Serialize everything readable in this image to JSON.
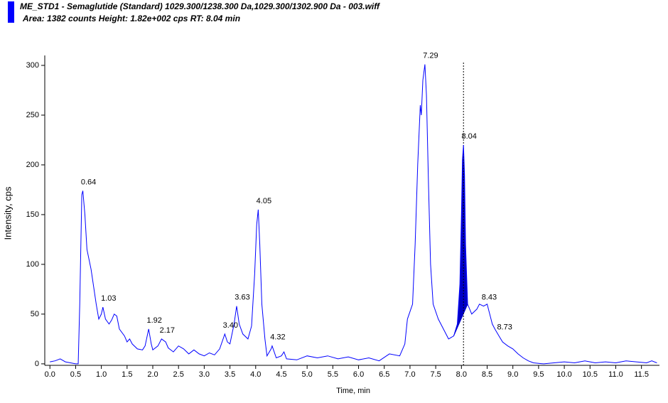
{
  "chart_data": {
    "type": "line",
    "title": "ME_STD1 - Semaglutide (Standard) 1029.300/1238.300 Da,1029.300/1302.900 Da - 003.wiff",
    "subtitle": "Area: 1382 counts  Height: 1.82e+002 cps  RT: 8.04 min",
    "x_label": "Time, min",
    "y_label": "Intensity, cps",
    "color": "#0000ff",
    "fill_color": "#0000c8",
    "xlim": [
      -0.1,
      11.85
    ],
    "ylim": [
      -1.5,
      310
    ],
    "xticks": [
      {
        "value": 0,
        "label": "0.0"
      },
      0.5,
      {
        "value": 1,
        "label": "1.0"
      },
      1.5,
      {
        "value": 2,
        "label": "2.0"
      },
      2.5,
      {
        "value": 3,
        "label": "3.0"
      },
      3.5,
      {
        "value": 4,
        "label": "4.0"
      },
      4.5,
      {
        "value": 5,
        "label": "5.0"
      },
      5.5,
      {
        "value": 6,
        "label": "6.0"
      },
      6.5,
      {
        "value": 7,
        "label": "7.0"
      },
      7.5,
      {
        "value": 8,
        "label": "8.0"
      },
      8.5,
      {
        "value": 9,
        "label": "9.0"
      },
      9.5,
      {
        "value": 10,
        "label": "10.0"
      },
      10.5,
      {
        "value": 11,
        "label": "11.0"
      },
      11.5
    ],
    "yticks": [
      0,
      50,
      100,
      150,
      200,
      250,
      300
    ],
    "marker_x": 8.04,
    "integrated_range": [
      7.85,
      8.12
    ],
    "x": [
      0.0,
      0.1,
      0.2,
      0.3,
      0.4,
      0.5,
      0.55,
      0.58,
      0.62,
      0.64,
      0.68,
      0.72,
      0.8,
      0.9,
      0.95,
      1.0,
      1.03,
      1.08,
      1.15,
      1.2,
      1.25,
      1.3,
      1.35,
      1.45,
      1.5,
      1.55,
      1.6,
      1.7,
      1.8,
      1.85,
      1.92,
      1.97,
      2.0,
      2.1,
      2.17,
      2.25,
      2.3,
      2.4,
      2.5,
      2.6,
      2.7,
      2.8,
      2.9,
      3.0,
      3.1,
      3.2,
      3.3,
      3.4,
      3.45,
      3.5,
      3.58,
      3.63,
      3.68,
      3.75,
      3.85,
      3.92,
      3.98,
      4.02,
      4.05,
      4.08,
      4.12,
      4.18,
      4.22,
      4.3,
      4.32,
      4.4,
      4.5,
      4.55,
      4.6,
      4.8,
      5.0,
      5.2,
      5.4,
      5.6,
      5.8,
      6.0,
      6.2,
      6.4,
      6.6,
      6.8,
      6.9,
      6.95,
      7.05,
      7.1,
      7.15,
      7.2,
      7.22,
      7.25,
      7.29,
      7.32,
      7.36,
      7.4,
      7.45,
      7.55,
      7.65,
      7.75,
      7.85,
      7.92,
      7.97,
      8.0,
      8.02,
      8.04,
      8.06,
      8.08,
      8.12,
      8.2,
      8.3,
      8.35,
      8.43,
      8.5,
      8.55,
      8.6,
      8.65,
      8.73,
      8.8,
      8.9,
      9.0,
      9.1,
      9.2,
      9.3,
      9.4,
      9.6,
      9.8,
      10.0,
      10.2,
      10.4,
      10.6,
      10.8,
      11.0,
      11.2,
      11.4,
      11.6,
      11.7,
      11.8
    ],
    "values": [
      2,
      3,
      5,
      2,
      1,
      0,
      0,
      60,
      170,
      174,
      150,
      115,
      95,
      60,
      45,
      50,
      57,
      45,
      40,
      44,
      50,
      48,
      35,
      28,
      22,
      25,
      20,
      15,
      14,
      18,
      35,
      20,
      14,
      18,
      25,
      22,
      16,
      12,
      18,
      15,
      10,
      14,
      10,
      8,
      11,
      9,
      15,
      30,
      22,
      20,
      40,
      58,
      40,
      30,
      25,
      38,
      90,
      140,
      155,
      120,
      60,
      25,
      8,
      15,
      18,
      6,
      8,
      12,
      5,
      4,
      8,
      6,
      8,
      5,
      7,
      4,
      6,
      3,
      10,
      8,
      20,
      45,
      60,
      120,
      200,
      260,
      250,
      285,
      301,
      270,
      180,
      100,
      60,
      45,
      35,
      25,
      28,
      40,
      80,
      150,
      205,
      220,
      190,
      120,
      60,
      50,
      55,
      60,
      58,
      60,
      50,
      40,
      35,
      28,
      22,
      18,
      15,
      10,
      6,
      3,
      1,
      0,
      1,
      2,
      1,
      3,
      1,
      2,
      1,
      3,
      2,
      1,
      3,
      1
    ],
    "annotations": [
      {
        "text": "0.64",
        "x": 0.64,
        "y": 174
      },
      {
        "text": "1.03",
        "x": 1.03,
        "y": 57
      },
      {
        "text": "1.92",
        "x": 1.92,
        "y": 35
      },
      {
        "text": "2.17",
        "x": 2.17,
        "y": 25
      },
      {
        "text": "3.40",
        "x": 3.4,
        "y": 30
      },
      {
        "text": "3.63",
        "x": 3.63,
        "y": 58
      },
      {
        "text": "4.05",
        "x": 4.05,
        "y": 155
      },
      {
        "text": "4.32",
        "x": 4.32,
        "y": 18
      },
      {
        "text": "7.29",
        "x": 7.29,
        "y": 301
      },
      {
        "text": "8.04",
        "x": 8.04,
        "y": 220
      },
      {
        "text": "8.43",
        "x": 8.43,
        "y": 58
      },
      {
        "text": "8.73",
        "x": 8.73,
        "y": 28
      }
    ]
  }
}
